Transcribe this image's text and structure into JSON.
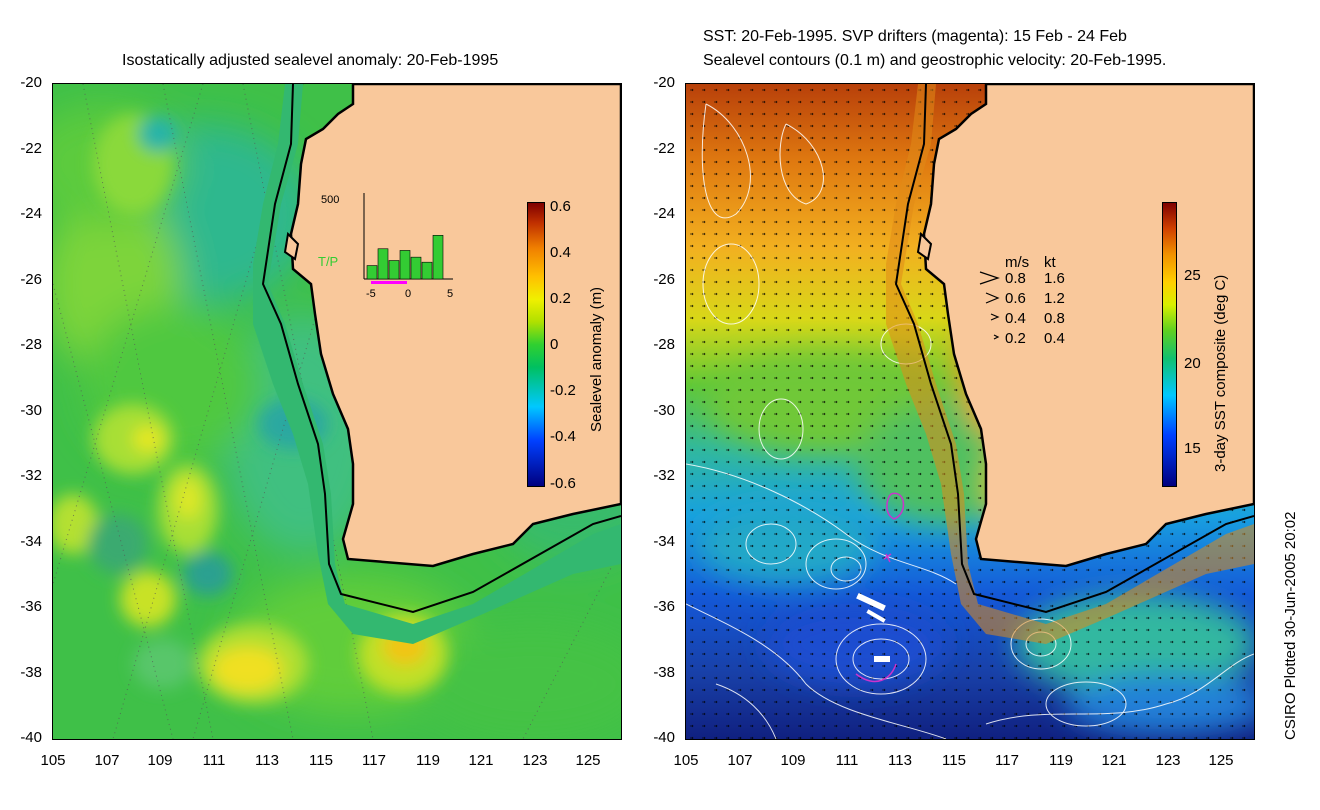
{
  "left_panel": {
    "title": "Isostatically adjusted sealevel anomaly: 20-Feb-1995",
    "colorbar": {
      "label": "Sealevel anomaly (m)",
      "ticks": [
        "0.6",
        "0.4",
        "0.2",
        "0",
        "-0.2",
        "-0.4",
        "-0.6"
      ]
    },
    "inset": {
      "track_label": "T/P",
      "y_max_label": "500",
      "x_ticks": [
        "-5",
        "0",
        "5"
      ],
      "bar_values": [
        80,
        180,
        110,
        170,
        130,
        100,
        260
      ],
      "colors": {
        "bars": "#33cc33",
        "track_label": "#33cc33",
        "drifter_strip": "#ff00ff"
      }
    }
  },
  "right_panel": {
    "title_line1": "SST: 20-Feb-1995. SVP drifters (magenta): 15 Feb - 24 Feb",
    "title_line2": "Sealevel contours (0.1 m) and geostrophic velocity: 20-Feb-1995.",
    "colorbar": {
      "label": "3-day SST composite (deg C)",
      "ticks": [
        "25",
        "20",
        "15"
      ]
    },
    "velocity_legend": {
      "header_ms": "m/s",
      "header_kt": "kt",
      "rows": [
        {
          "ms": "0.8",
          "kt": "1.6"
        },
        {
          "ms": "0.6",
          "kt": "1.2"
        },
        {
          "ms": "0.4",
          "kt": "0.8"
        },
        {
          "ms": "0.2",
          "kt": "0.4"
        }
      ]
    }
  },
  "axes": {
    "y_ticks": [
      "-20",
      "-22",
      "-24",
      "-26",
      "-28",
      "-30",
      "-32",
      "-34",
      "-36",
      "-38",
      "-40"
    ],
    "x_ticks": [
      "105",
      "107",
      "109",
      "111",
      "113",
      "115",
      "117",
      "119",
      "121",
      "123",
      "125"
    ]
  },
  "colors": {
    "land": "#f9c89b",
    "coast": "#000000",
    "drifters": "#cc33cc",
    "contours": "#ffffff"
  },
  "footer": "CSIRO Plotted 30-Jun-2005 20:02"
}
